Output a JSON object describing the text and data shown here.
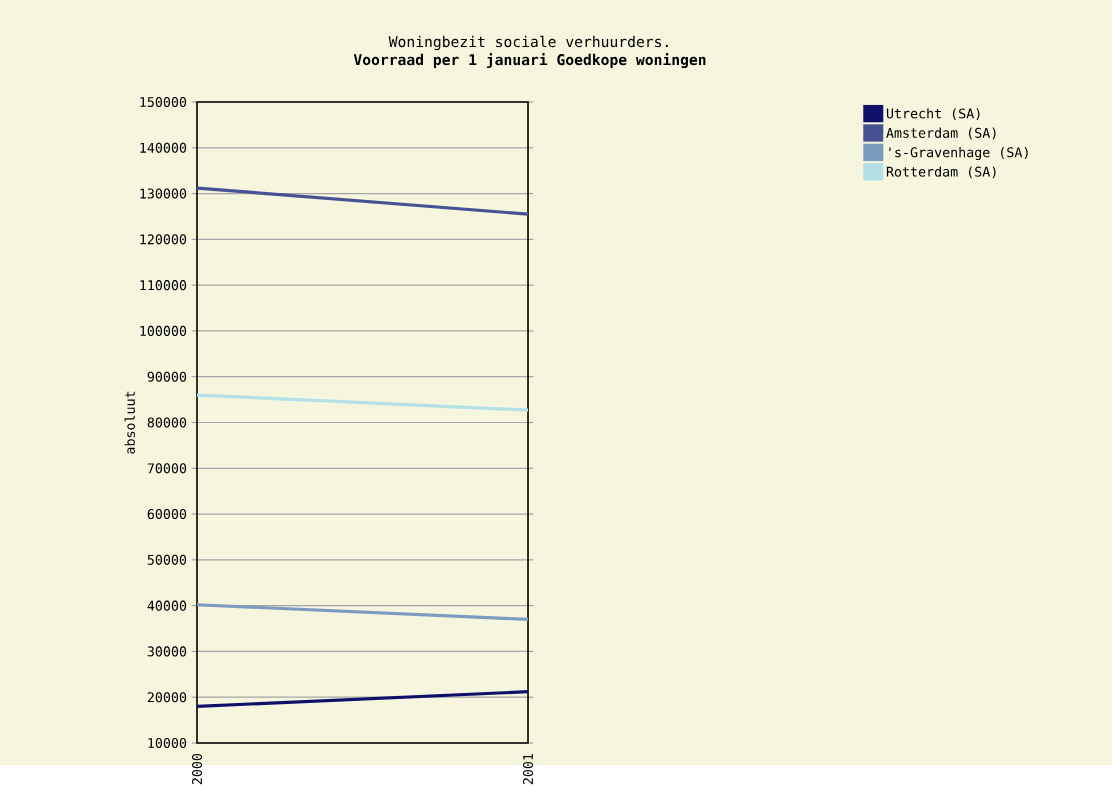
{
  "chart_data": {
    "type": "line",
    "title": "Woningbezit sociale verhuurders.",
    "subtitle": "Voorraad per 1 januari Goedkope woningen",
    "ylabel": "absoluut",
    "x": [
      2000,
      2001
    ],
    "xlim": [
      2000,
      2001
    ],
    "xticks": [
      2000,
      2001
    ],
    "ylim": [
      10000,
      150000
    ],
    "yticks": [
      10000,
      20000,
      30000,
      40000,
      50000,
      60000,
      70000,
      80000,
      90000,
      100000,
      110000,
      120000,
      130000,
      140000,
      150000
    ],
    "grid": "y",
    "legend": "top right",
    "line_style": "solid",
    "marker": "none",
    "series": [
      {
        "name": "Utrecht (SA)",
        "color": "#10106b",
        "values": [
          18000,
          21200
        ]
      },
      {
        "name": "Amsterdam (SA)",
        "color": "#465291",
        "values": [
          131200,
          125500
        ]
      },
      {
        "name": "'s-Gravenhage (SA)",
        "color": "#7b9bbf",
        "values": [
          40200,
          37000
        ]
      },
      {
        "name": "Rotterdam (SA)",
        "color": "#b5e0e8",
        "values": [
          86000,
          82700
        ]
      }
    ]
  }
}
